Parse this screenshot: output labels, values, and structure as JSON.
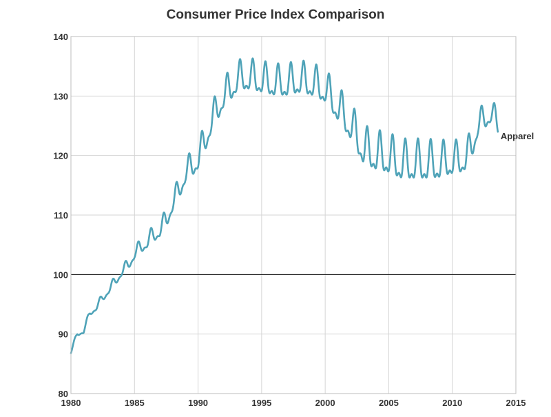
{
  "chart_data": {
    "type": "line",
    "title": "Consumer Price Index Comparison",
    "xlabel": "",
    "ylabel": "",
    "xlim": [
      1980,
      2015
    ],
    "ylim": [
      80,
      140
    ],
    "x_ticks": [
      1980,
      1985,
      1990,
      1995,
      2000,
      2005,
      2010,
      2015
    ],
    "y_ticks": [
      80,
      90,
      100,
      110,
      120,
      130,
      140
    ],
    "grid": true,
    "reference_line": 100,
    "series": [
      {
        "name": "Apparel",
        "color": "#4fa3b8",
        "seasonal_monthly_pattern": true,
        "points": [
          [
            1980.0,
            87.0
          ],
          [
            1980.5,
            90.0
          ],
          [
            1981.0,
            90.5
          ],
          [
            1981.5,
            93.5
          ],
          [
            1982.0,
            94.5
          ],
          [
            1982.5,
            96.0
          ],
          [
            1983.0,
            97.5
          ],
          [
            1983.5,
            98.8
          ],
          [
            1984.0,
            100.5
          ],
          [
            1984.5,
            101.5
          ],
          [
            1985.0,
            103.5
          ],
          [
            1985.5,
            104.5
          ],
          [
            1986.0,
            105.5
          ],
          [
            1986.5,
            106.5
          ],
          [
            1987.0,
            107.5
          ],
          [
            1987.5,
            109.0
          ],
          [
            1988.0,
            112.0
          ],
          [
            1988.5,
            114.0
          ],
          [
            1989.0,
            117.0
          ],
          [
            1989.5,
            118.0
          ],
          [
            1990.0,
            119.5
          ],
          [
            1990.5,
            122.0
          ],
          [
            1991.0,
            125.5
          ],
          [
            1991.5,
            127.5
          ],
          [
            1992.0,
            130.0
          ],
          [
            1992.5,
            131.0
          ],
          [
            1993.0,
            132.5
          ],
          [
            1993.5,
            133.0
          ],
          [
            1994.0,
            133.0
          ],
          [
            1994.5,
            132.8
          ],
          [
            1995.0,
            132.5
          ],
          [
            1995.5,
            132.3
          ],
          [
            1996.0,
            132.0
          ],
          [
            1996.5,
            132.0
          ],
          [
            1997.0,
            132.0
          ],
          [
            1997.5,
            132.3
          ],
          [
            1998.0,
            132.5
          ],
          [
            1998.5,
            132.3
          ],
          [
            1999.0,
            132.0
          ],
          [
            1999.5,
            131.5
          ],
          [
            2000.0,
            131.0
          ],
          [
            2000.5,
            129.5
          ],
          [
            2001.0,
            128.0
          ],
          [
            2001.5,
            126.5
          ],
          [
            2002.0,
            125.0
          ],
          [
            2002.5,
            123.0
          ],
          [
            2003.0,
            121.0
          ],
          [
            2003.5,
            120.5
          ],
          [
            2004.0,
            120.0
          ],
          [
            2004.5,
            119.8
          ],
          [
            2005.0,
            119.5
          ],
          [
            2005.5,
            119.0
          ],
          [
            2006.0,
            118.5
          ],
          [
            2006.5,
            118.5
          ],
          [
            2007.0,
            118.5
          ],
          [
            2007.5,
            118.5
          ],
          [
            2008.0,
            118.5
          ],
          [
            2008.5,
            118.5
          ],
          [
            2009.0,
            118.5
          ],
          [
            2009.5,
            118.8
          ],
          [
            2010.0,
            119.0
          ],
          [
            2010.5,
            119.0
          ],
          [
            2011.0,
            119.5
          ],
          [
            2011.5,
            121.0
          ],
          [
            2012.0,
            125.0
          ],
          [
            2012.5,
            126.0
          ],
          [
            2013.0,
            127.0
          ],
          [
            2013.4,
            126.0
          ],
          [
            2013.6,
            125.0
          ]
        ]
      }
    ]
  }
}
